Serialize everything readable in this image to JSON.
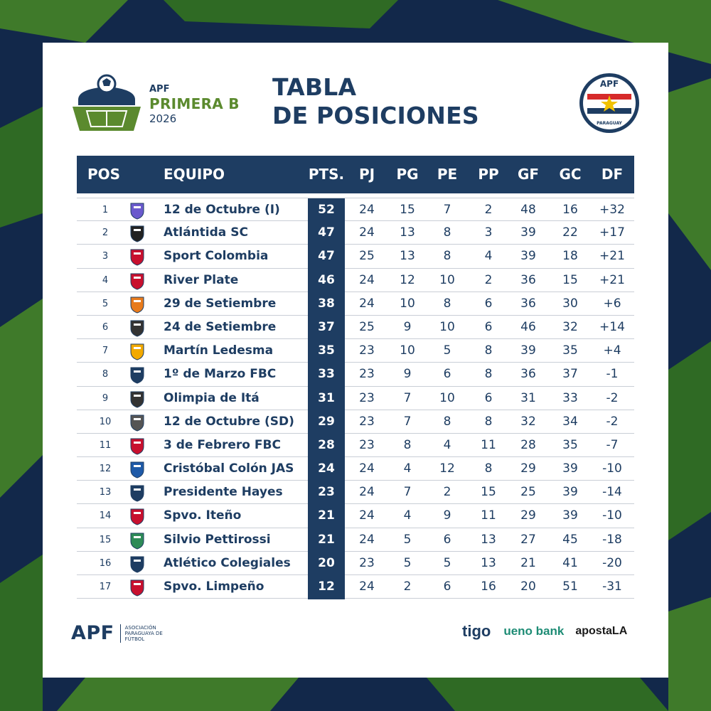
{
  "header": {
    "league_org": "APF",
    "league_name": "PRIMERA B",
    "season": "2026",
    "title_line1": "TABLA",
    "title_line2": "DE POSICIONES",
    "crest_text_top": "APF",
    "crest_text_bottom": "PARAGUAY"
  },
  "table": {
    "columns": [
      "POS",
      "EQUIPO",
      "PTS.",
      "PJ",
      "PG",
      "PE",
      "PP",
      "GF",
      "GC",
      "DF"
    ],
    "rows": [
      {
        "pos": "1",
        "team": "12 de Octubre (I)",
        "pts": "52",
        "pj": "24",
        "pg": "15",
        "pe": "7",
        "pp": "2",
        "gf": "48",
        "gc": "16",
        "df": "+32"
      },
      {
        "pos": "2",
        "team": "Atlántida SC",
        "pts": "47",
        "pj": "24",
        "pg": "13",
        "pe": "8",
        "pp": "3",
        "gf": "39",
        "gc": "22",
        "df": "+17"
      },
      {
        "pos": "3",
        "team": "Sport Colombia",
        "pts": "47",
        "pj": "25",
        "pg": "13",
        "pe": "8",
        "pp": "4",
        "gf": "39",
        "gc": "18",
        "df": "+21"
      },
      {
        "pos": "4",
        "team": "River Plate",
        "pts": "46",
        "pj": "24",
        "pg": "12",
        "pe": "10",
        "pp": "2",
        "gf": "36",
        "gc": "15",
        "df": "+21"
      },
      {
        "pos": "5",
        "team": "29 de Setiembre",
        "pts": "38",
        "pj": "24",
        "pg": "10",
        "pe": "8",
        "pp": "6",
        "gf": "36",
        "gc": "30",
        "df": "+6"
      },
      {
        "pos": "6",
        "team": "24 de Setiembre",
        "pts": "37",
        "pj": "25",
        "pg": "9",
        "pe": "10",
        "pp": "6",
        "gf": "46",
        "gc": "32",
        "df": "+14"
      },
      {
        "pos": "7",
        "team": "Martín Ledesma",
        "pts": "35",
        "pj": "23",
        "pg": "10",
        "pe": "5",
        "pp": "8",
        "gf": "39",
        "gc": "35",
        "df": "+4"
      },
      {
        "pos": "8",
        "team": "1º de Marzo FBC",
        "pts": "33",
        "pj": "23",
        "pg": "9",
        "pe": "6",
        "pp": "8",
        "gf": "36",
        "gc": "37",
        "df": "-1"
      },
      {
        "pos": "9",
        "team": "Olimpia de Itá",
        "pts": "31",
        "pj": "23",
        "pg": "7",
        "pe": "10",
        "pp": "6",
        "gf": "31",
        "gc": "33",
        "df": "-2"
      },
      {
        "pos": "10",
        "team": "12 de Octubre (SD)",
        "pts": "29",
        "pj": "23",
        "pg": "7",
        "pe": "8",
        "pp": "8",
        "gf": "32",
        "gc": "34",
        "df": "-2"
      },
      {
        "pos": "11",
        "team": "3 de Febrero FBC",
        "pts": "28",
        "pj": "23",
        "pg": "8",
        "pe": "4",
        "pp": "11",
        "gf": "28",
        "gc": "35",
        "df": "-7"
      },
      {
        "pos": "12",
        "team": "Cristóbal Colón JAS",
        "pts": "24",
        "pj": "24",
        "pg": "4",
        "pe": "12",
        "pp": "8",
        "gf": "29",
        "gc": "39",
        "df": "-10"
      },
      {
        "pos": "13",
        "team": "Presidente Hayes",
        "pts": "23",
        "pj": "24",
        "pg": "7",
        "pe": "2",
        "pp": "15",
        "gf": "25",
        "gc": "39",
        "df": "-14"
      },
      {
        "pos": "14",
        "team": "Spvo. Iteño",
        "pts": "21",
        "pj": "24",
        "pg": "4",
        "pe": "9",
        "pp": "11",
        "gf": "29",
        "gc": "39",
        "df": "-10"
      },
      {
        "pos": "15",
        "team": "Silvio Pettirossi",
        "pts": "21",
        "pj": "24",
        "pg": "5",
        "pe": "6",
        "pp": "13",
        "gf": "27",
        "gc": "45",
        "df": "-18"
      },
      {
        "pos": "16",
        "team": "Atlético Colegiales",
        "pts": "20",
        "pj": "23",
        "pg": "5",
        "pe": "5",
        "pp": "13",
        "gf": "21",
        "gc": "41",
        "df": "-20"
      },
      {
        "pos": "17",
        "team": "Spvo. Limpeño",
        "pts": "12",
        "pj": "24",
        "pg": "2",
        "pe": "6",
        "pp": "16",
        "gf": "20",
        "gc": "51",
        "df": "-31"
      }
    ]
  },
  "footer": {
    "apf_logo": "APF",
    "apf_full_name": "ASOCIACIÓN PARAGUAYA DE FÚTBOL",
    "sponsors": [
      "tigo",
      "ueno bank",
      "apostaLA"
    ]
  },
  "colors": {
    "navy": "#1e3d62",
    "green": "#5b8a2e",
    "background_green": "#3f7a2a",
    "background_navy": "#12284a"
  }
}
